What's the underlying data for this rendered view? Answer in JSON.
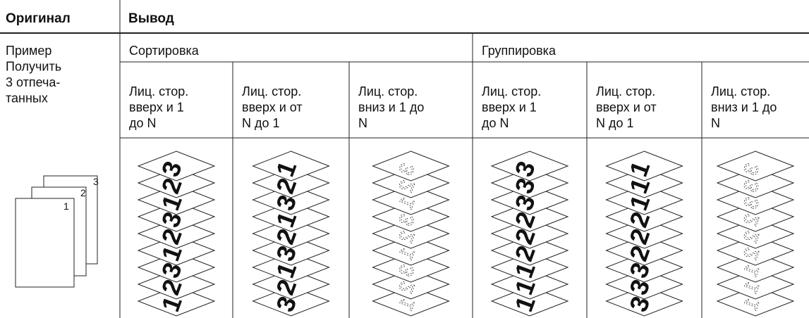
{
  "header": {
    "original": "Оригинал",
    "output": "Вывод"
  },
  "example": [
    "Пример",
    "Получить",
    "3 отпеча-",
    "танных"
  ],
  "original_pages": [
    "1",
    "2",
    "3"
  ],
  "groups": [
    {
      "title": "Сортировка",
      "columns": [
        {
          "label": [
            "Лиц. стор.",
            "вверх и 1",
            "до N"
          ],
          "face_down": false,
          "sheets": [
            "3",
            "2",
            "1",
            "3",
            "2",
            "1",
            "3",
            "2",
            "1"
          ]
        },
        {
          "label": [
            "Лиц. стор.",
            "вверх и от",
            "N до 1"
          ],
          "face_down": false,
          "sheets": [
            "1",
            "2",
            "3",
            "1",
            "2",
            "3",
            "1",
            "2",
            "3"
          ]
        },
        {
          "label": [
            "Лиц. стор.",
            "вниз и 1 до",
            "N"
          ],
          "face_down": true,
          "sheets": [
            "3",
            "2",
            "1",
            "3",
            "2",
            "1",
            "3",
            "2",
            "1"
          ]
        }
      ]
    },
    {
      "title": "Группировка",
      "columns": [
        {
          "label": [
            "Лиц. стор.",
            "вверх и 1",
            "до N"
          ],
          "face_down": false,
          "sheets": [
            "3",
            "3",
            "3",
            "2",
            "2",
            "2",
            "1",
            "1",
            "1"
          ]
        },
        {
          "label": [
            "Лиц. стор.",
            "вверх и от",
            "N до 1"
          ],
          "face_down": false,
          "sheets": [
            "1",
            "1",
            "1",
            "2",
            "2",
            "2",
            "3",
            "3",
            "3"
          ]
        },
        {
          "label": [
            "Лиц. стор.",
            "вниз и 1 до",
            "N"
          ],
          "face_down": true,
          "sheets": [
            "3",
            "3",
            "3",
            "2",
            "2",
            "2",
            "1",
            "1",
            "1"
          ]
        }
      ]
    }
  ]
}
